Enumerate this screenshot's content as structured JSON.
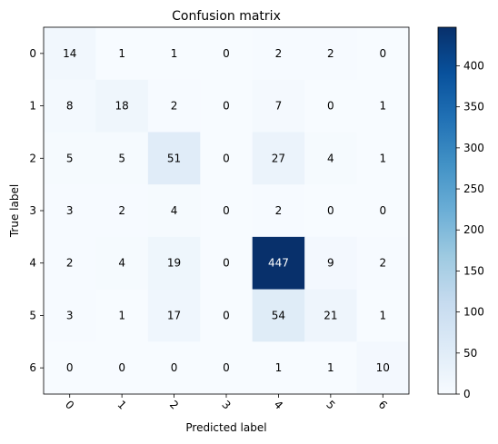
{
  "chart_data": {
    "type": "heatmap",
    "title": "Confusion matrix",
    "xlabel": "Predicted label",
    "ylabel": "True label",
    "x_categories": [
      "0",
      "1",
      "2",
      "3",
      "4",
      "5",
      "6"
    ],
    "y_categories": [
      "0",
      "1",
      "2",
      "3",
      "4",
      "5",
      "6"
    ],
    "values": [
      [
        14,
        1,
        1,
        0,
        2,
        2,
        0
      ],
      [
        8,
        18,
        2,
        0,
        7,
        0,
        1
      ],
      [
        5,
        5,
        51,
        0,
        27,
        4,
        1
      ],
      [
        3,
        2,
        4,
        0,
        2,
        0,
        0
      ],
      [
        2,
        4,
        19,
        0,
        447,
        9,
        2
      ],
      [
        3,
        1,
        17,
        0,
        54,
        21,
        1
      ],
      [
        0,
        0,
        0,
        0,
        1,
        1,
        10
      ]
    ],
    "colorbar": {
      "colormap": "Blues",
      "min": 0,
      "max": 447,
      "ticks": [
        "0",
        "50",
        "100",
        "150",
        "200",
        "250",
        "300",
        "350",
        "400"
      ]
    },
    "x_tick_rotation_deg": 45,
    "grid": false
  }
}
